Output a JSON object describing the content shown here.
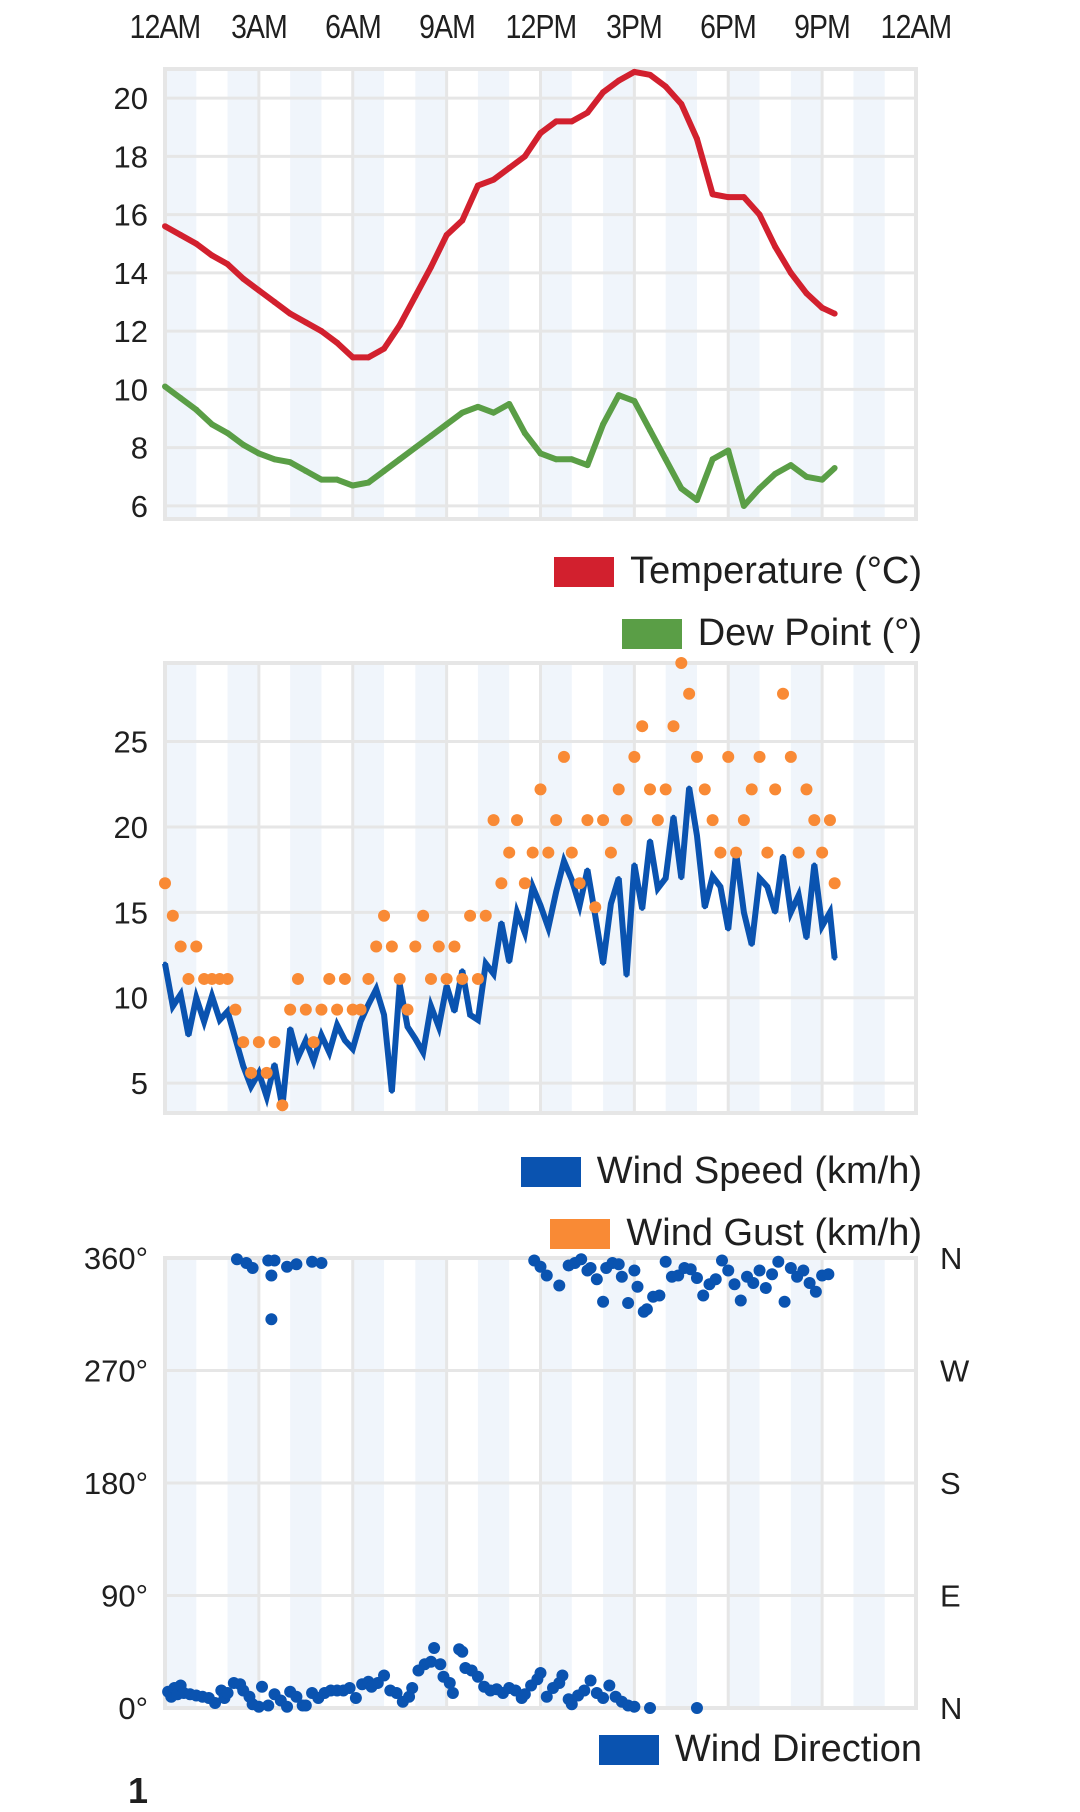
{
  "x_axis": {
    "labels": [
      "12AM",
      "3AM",
      "6AM",
      "9AM",
      "12PM",
      "3PM",
      "6PM",
      "9PM",
      "12AM"
    ]
  },
  "colors": {
    "temperature": "#d2202e",
    "dew_point": "#5a9e46",
    "wind_speed": "#0a53b0",
    "wind_gust": "#f98a35",
    "wind_direction": "#0a53b0",
    "grid": "#e6e6e6",
    "band": "#f0f5fb"
  },
  "footer_partial_text": "1",
  "chart_data": [
    {
      "type": "line",
      "title": "",
      "xlabel": "",
      "ylabel": "",
      "x_unit": "hours since midnight",
      "xlim": [
        0,
        24
      ],
      "ylim": [
        5.55,
        21.0
      ],
      "y_ticks": [
        "6",
        "8",
        "10",
        "12",
        "14",
        "16",
        "18",
        "20"
      ],
      "y_tick_values": [
        6,
        8,
        10,
        12,
        14,
        16,
        18,
        20
      ],
      "grid": true,
      "legend_position": "bottom-right",
      "x": [
        0,
        0.5,
        1,
        1.5,
        2,
        2.5,
        3,
        3.5,
        4,
        4.5,
        5,
        5.5,
        6,
        6.5,
        7,
        7.5,
        8,
        8.5,
        9,
        9.5,
        10,
        10.5,
        11,
        11.5,
        12,
        12.5,
        13,
        13.5,
        14,
        14.5,
        15,
        15.5,
        16,
        16.5,
        17,
        17.5,
        18,
        18.5,
        19,
        19.5,
        20,
        20.5,
        21,
        21.4
      ],
      "series": [
        {
          "name": "Temperature (°C)",
          "key": "temperature",
          "values": [
            15.6,
            15.3,
            15.0,
            14.6,
            14.3,
            13.8,
            13.4,
            13.0,
            12.6,
            12.3,
            12.0,
            11.6,
            11.1,
            11.1,
            11.4,
            12.2,
            13.2,
            14.2,
            15.3,
            15.8,
            17.0,
            17.2,
            17.6,
            18.0,
            18.8,
            19.2,
            19.2,
            19.5,
            20.2,
            20.6,
            20.9,
            20.8,
            20.4,
            19.8,
            18.6,
            16.7,
            16.6,
            16.6,
            16.0,
            14.9,
            14.0,
            13.3,
            12.8,
            12.6
          ]
        },
        {
          "name": "Dew Point (°)",
          "key": "dew_point",
          "values": [
            10.1,
            9.7,
            9.3,
            8.8,
            8.5,
            8.1,
            7.8,
            7.6,
            7.5,
            7.2,
            6.9,
            6.9,
            6.7,
            6.8,
            7.2,
            7.6,
            8.0,
            8.4,
            8.8,
            9.2,
            9.4,
            9.2,
            9.5,
            8.5,
            7.8,
            7.6,
            7.6,
            7.4,
            8.8,
            9.8,
            9.6,
            8.6,
            7.6,
            6.6,
            6.2,
            7.6,
            7.9,
            6.0,
            6.6,
            7.1,
            7.4,
            7.0,
            6.9,
            7.3
          ]
        }
      ]
    },
    {
      "type": "line",
      "title": "",
      "xlabel": "",
      "ylabel": "",
      "x_unit": "hours since midnight",
      "xlim": [
        0,
        24
      ],
      "ylim": [
        3.25,
        29.6
      ],
      "y_ticks": [
        "5",
        "10",
        "15",
        "20",
        "25"
      ],
      "y_tick_values": [
        5,
        10,
        15,
        20,
        25
      ],
      "grid": true,
      "legend_position": "bottom-right",
      "x": [
        0,
        0.25,
        0.5,
        0.75,
        1,
        1.25,
        1.5,
        1.75,
        2,
        2.25,
        2.5,
        2.75,
        3,
        3.25,
        3.5,
        3.75,
        4,
        4.25,
        4.5,
        4.75,
        5,
        5.25,
        5.5,
        5.75,
        6,
        6.25,
        6.5,
        6.75,
        7,
        7.25,
        7.5,
        7.75,
        8,
        8.25,
        8.5,
        8.75,
        9,
        9.25,
        9.5,
        9.75,
        10,
        10.25,
        10.5,
        10.75,
        11,
        11.25,
        11.5,
        11.75,
        12,
        12.25,
        12.5,
        12.75,
        13,
        13.25,
        13.5,
        13.75,
        14,
        14.25,
        14.5,
        14.75,
        15,
        15.25,
        15.5,
        15.75,
        16,
        16.25,
        16.5,
        16.75,
        17,
        17.25,
        17.5,
        17.75,
        18,
        18.25,
        18.5,
        18.75,
        19,
        19.25,
        19.5,
        19.75,
        20,
        20.25,
        20.5,
        20.75,
        21,
        21.25,
        21.4
      ],
      "series": [
        {
          "name": "Wind Speed (km/h)",
          "key": "wind_speed",
          "values": [
            12.0,
            9.5,
            10.2,
            7.8,
            10.0,
            8.6,
            10.1,
            8.7,
            9.2,
            7.6,
            6.0,
            4.8,
            5.6,
            4.2,
            6.1,
            3.6,
            8.2,
            6.5,
            7.5,
            6.3,
            7.8,
            6.8,
            8.4,
            7.5,
            7.0,
            8.6,
            9.6,
            10.5,
            9.0,
            4.5,
            10.8,
            8.3,
            7.6,
            6.8,
            9.5,
            8.3,
            10.7,
            9.2,
            11.6,
            9.0,
            8.7,
            12.0,
            11.4,
            14.4,
            12.1,
            15.0,
            13.8,
            16.5,
            15.4,
            14.1,
            16.2,
            18.0,
            16.9,
            15.4,
            17.5,
            14.8,
            12.0,
            15.5,
            17.0,
            11.3,
            17.8,
            15.2,
            19.2,
            16.4,
            17.0,
            20.6,
            17.0,
            22.3,
            19.5,
            15.3,
            17.1,
            16.5,
            14.0,
            18.5,
            15.0,
            13.1,
            17.0,
            16.5,
            15.0,
            18.3,
            15.0,
            16.0,
            13.5,
            17.8,
            14.2,
            15.0,
            12.3
          ]
        },
        {
          "name": "Wind Gust (km/h)",
          "key": "wind_gust",
          "values": [
            16.7,
            14.8,
            13.0,
            11.1,
            13.0,
            11.1,
            11.1,
            11.1,
            11.1,
            9.3,
            7.4,
            5.6,
            7.4,
            5.6,
            7.4,
            3.7,
            9.3,
            11.1,
            9.3,
            7.4,
            9.3,
            11.1,
            9.3,
            11.1,
            9.3,
            9.3,
            11.1,
            13.0,
            14.8,
            13.0,
            11.1,
            9.3,
            13.0,
            14.8,
            11.1,
            13.0,
            11.1,
            13.0,
            11.1,
            14.8,
            11.1,
            14.8,
            20.4,
            16.7,
            18.5,
            20.4,
            16.7,
            18.5,
            22.2,
            18.5,
            20.4,
            24.1,
            18.5,
            16.7,
            20.4,
            15.3,
            20.4,
            18.5,
            22.2,
            20.4,
            24.1,
            25.9,
            22.2,
            20.4,
            22.2,
            25.9,
            29.6,
            27.8,
            24.1,
            22.2,
            20.4,
            18.5,
            24.1,
            18.5,
            20.4,
            22.2,
            24.1,
            18.5,
            22.2,
            27.8,
            24.1,
            18.5,
            22.2,
            20.4,
            18.5,
            20.4,
            16.7
          ]
        }
      ]
    },
    {
      "type": "scatter",
      "title": "",
      "xlabel": "",
      "ylabel": "",
      "x_unit": "hours since midnight",
      "xlim": [
        0,
        24
      ],
      "ylim": [
        0,
        360
      ],
      "y_ticks": [
        "0°",
        "90°",
        "180°",
        "270°",
        "360°"
      ],
      "y_tick_values": [
        0,
        90,
        180,
        270,
        360
      ],
      "right_ticks": [
        "N",
        "E",
        "S",
        "W",
        "N"
      ],
      "grid": true,
      "legend_position": "bottom-right",
      "series": [
        {
          "name": "Wind Direction",
          "key": "wind_direction",
          "points": [
            [
              0.1,
              13
            ],
            [
              0.2,
              9
            ],
            [
              0.3,
              16
            ],
            [
              0.4,
              11
            ],
            [
              0.5,
              18
            ],
            [
              0.6,
              12
            ],
            [
              0.8,
              11
            ],
            [
              1.0,
              10
            ],
            [
              1.2,
              9
            ],
            [
              1.4,
              8
            ],
            [
              1.6,
              4
            ],
            [
              1.8,
              14
            ],
            [
              1.9,
              8
            ],
            [
              2.0,
              12
            ],
            [
              2.2,
              20
            ],
            [
              2.4,
              19
            ],
            [
              2.5,
              14
            ],
            [
              2.7,
              9
            ],
            [
              2.8,
              3
            ],
            [
              3.0,
              1
            ],
            [
              3.1,
              17
            ],
            [
              3.3,
              2
            ],
            [
              3.5,
              11
            ],
            [
              3.7,
              6
            ],
            [
              3.9,
              1
            ],
            [
              4.0,
              13
            ],
            [
              4.2,
              9
            ],
            [
              4.4,
              2
            ],
            [
              4.5,
              2
            ],
            [
              4.7,
              12
            ],
            [
              4.9,
              8
            ],
            [
              5.1,
              12
            ],
            [
              5.3,
              14
            ],
            [
              5.5,
              14
            ],
            [
              5.7,
              14
            ],
            [
              5.9,
              16
            ],
            [
              6.1,
              8
            ],
            [
              6.3,
              19
            ],
            [
              6.5,
              21
            ],
            [
              6.6,
              17
            ],
            [
              6.8,
              20
            ],
            [
              7.0,
              26
            ],
            [
              7.2,
              14
            ],
            [
              7.4,
              12
            ],
            [
              7.6,
              5
            ],
            [
              7.8,
              9
            ],
            [
              7.9,
              16
            ],
            [
              8.1,
              30
            ],
            [
              8.3,
              35
            ],
            [
              8.5,
              37
            ],
            [
              8.6,
              48
            ],
            [
              8.8,
              35
            ],
            [
              8.9,
              25
            ],
            [
              9.1,
              20
            ],
            [
              9.2,
              12
            ],
            [
              9.4,
              47
            ],
            [
              9.5,
              45
            ],
            [
              9.6,
              32
            ],
            [
              9.8,
              30
            ],
            [
              10.0,
              25
            ],
            [
              10.2,
              17
            ],
            [
              10.4,
              14
            ],
            [
              10.6,
              15
            ],
            [
              10.8,
              12
            ],
            [
              11.0,
              16
            ],
            [
              11.2,
              14
            ],
            [
              11.4,
              8
            ],
            [
              11.5,
              11
            ],
            [
              11.7,
              18
            ],
            [
              11.9,
              23
            ],
            [
              12.0,
              28
            ],
            [
              12.2,
              9
            ],
            [
              12.4,
              16
            ],
            [
              12.6,
              20
            ],
            [
              12.7,
              26
            ],
            [
              12.9,
              7
            ],
            [
              13.0,
              3
            ],
            [
              13.2,
              10
            ],
            [
              13.4,
              14
            ],
            [
              13.6,
              22
            ],
            [
              13.8,
              12
            ],
            [
              14.0,
              8
            ],
            [
              14.2,
              18
            ],
            [
              14.4,
              9
            ],
            [
              14.6,
              5
            ],
            [
              14.8,
              2
            ],
            [
              15.0,
              1
            ],
            [
              15.5,
              0
            ],
            [
              17.0,
              0
            ],
            [
              2.3,
              359
            ],
            [
              2.6,
              356
            ],
            [
              2.8,
              352
            ],
            [
              3.3,
              358
            ],
            [
              3.4,
              346
            ],
            [
              3.5,
              358
            ],
            [
              3.9,
              353
            ],
            [
              4.2,
              355
            ],
            [
              4.7,
              357
            ],
            [
              5.0,
              356
            ],
            [
              3.4,
              311
            ],
            [
              11.8,
              358
            ],
            [
              12.0,
              353
            ],
            [
              12.2,
              346
            ],
            [
              12.6,
              338
            ],
            [
              12.9,
              354
            ],
            [
              13.1,
              356
            ],
            [
              13.3,
              359
            ],
            [
              13.5,
              350
            ],
            [
              13.6,
              352
            ],
            [
              13.8,
              343
            ],
            [
              14.0,
              325
            ],
            [
              14.1,
              352
            ],
            [
              14.3,
              356
            ],
            [
              14.5,
              355
            ],
            [
              14.6,
              345
            ],
            [
              14.8,
              324
            ],
            [
              15.0,
              350
            ],
            [
              15.1,
              337
            ],
            [
              15.3,
              317
            ],
            [
              15.4,
              319
            ],
            [
              15.6,
              329
            ],
            [
              15.8,
              330
            ],
            [
              16.0,
              357
            ],
            [
              16.2,
              345
            ],
            [
              16.4,
              346
            ],
            [
              16.6,
              352
            ],
            [
              16.8,
              351
            ],
            [
              17.0,
              344
            ],
            [
              17.2,
              330
            ],
            [
              17.4,
              339
            ],
            [
              17.6,
              343
            ],
            [
              17.8,
              358
            ],
            [
              18.0,
              350
            ],
            [
              18.2,
              339
            ],
            [
              18.4,
              326
            ],
            [
              18.6,
              345
            ],
            [
              18.8,
              340
            ],
            [
              19.0,
              350
            ],
            [
              19.2,
              336
            ],
            [
              19.4,
              347
            ],
            [
              19.6,
              357
            ],
            [
              19.8,
              325
            ],
            [
              20.0,
              352
            ],
            [
              20.2,
              345
            ],
            [
              20.4,
              350
            ],
            [
              20.6,
              340
            ],
            [
              20.8,
              333
            ],
            [
              21.0,
              346
            ],
            [
              21.2,
              347
            ]
          ]
        }
      ]
    }
  ]
}
